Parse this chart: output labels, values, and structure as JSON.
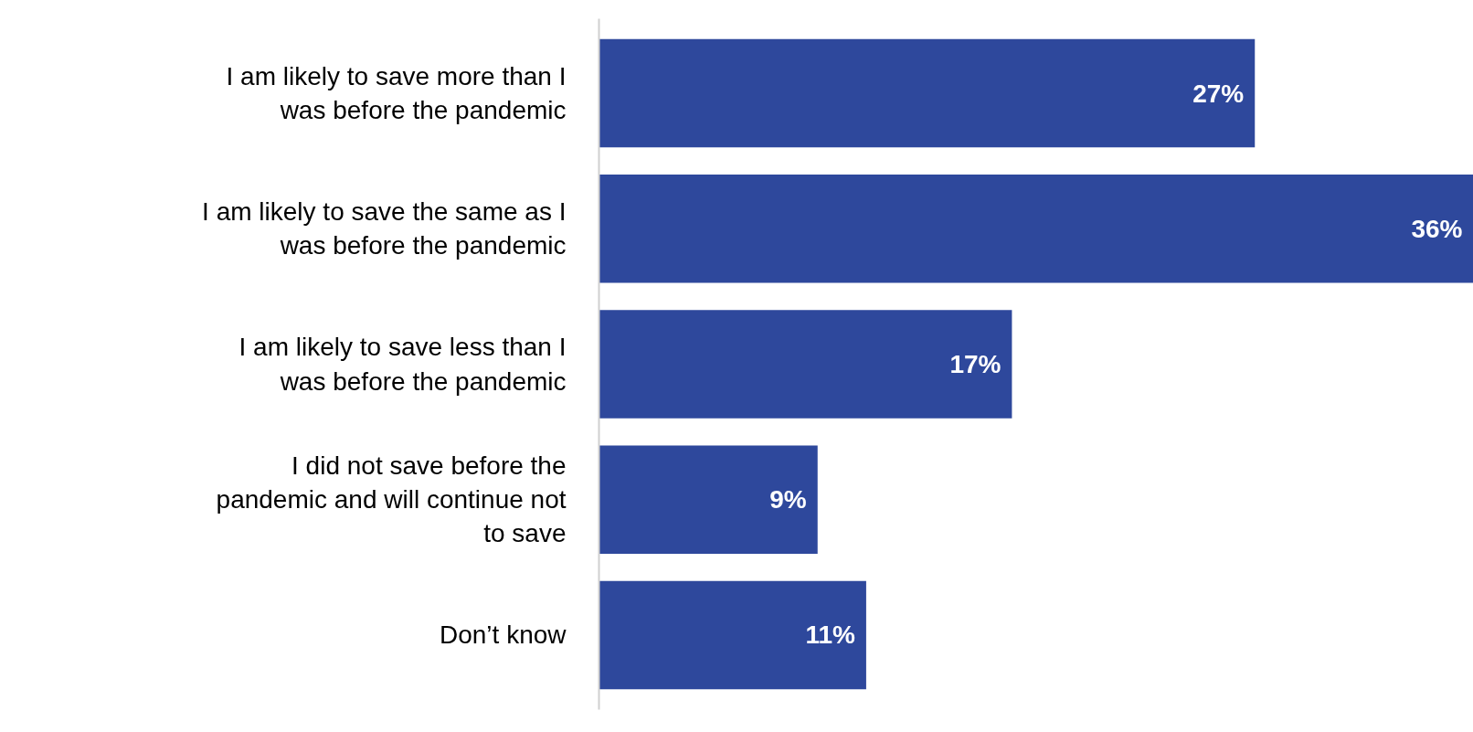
{
  "chart_data": {
    "type": "bar",
    "orientation": "horizontal",
    "tick_labels": "y",
    "categories": [
      "I am likely to save more than I\nwas before the pandemic",
      "I am likely to save the same as I\nwas before the pandemic",
      "I am likely to save less than I\nwas before the pandemic",
      "I did not save before the\npandemic and will continue not\nto save",
      "Don’t know"
    ],
    "values": [
      27,
      36,
      17,
      9,
      11
    ],
    "value_labels": [
      "27%",
      "36%",
      "17%",
      "9%",
      "11%"
    ],
    "color": "#2e489c"
  }
}
